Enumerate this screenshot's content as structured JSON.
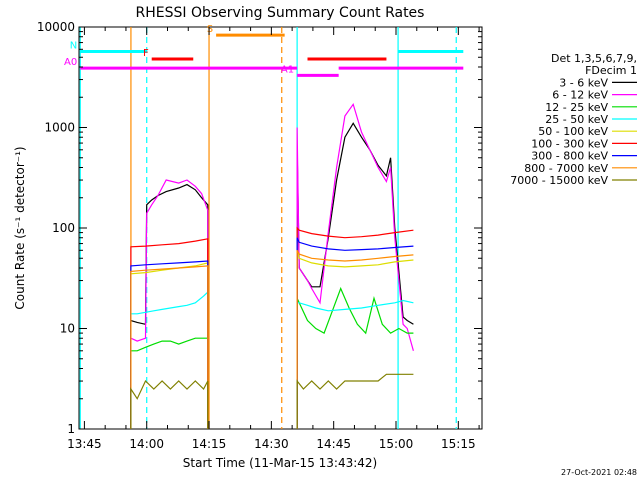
{
  "chart_data": {
    "type": "line",
    "title": "RHESSI Observing Summary Count Rates",
    "xlabel": "Start Time (11-Mar-15 13:43:42)",
    "ylabel": "Count Rate (s⁻¹ detector⁻¹)",
    "x_unit": "minutes after 13:43:42",
    "xlim": [
      0,
      97
    ],
    "ylim": [
      1,
      10000
    ],
    "y_scale": "log",
    "x_ticks": [
      {
        "label": "13:45",
        "value": 1.3
      },
      {
        "label": "14:00",
        "value": 16.3
      },
      {
        "label": "14:15",
        "value": 31.3
      },
      {
        "label": "14:30",
        "value": 46.3
      },
      {
        "label": "14:45",
        "value": 61.3
      },
      {
        "label": "15:00",
        "value": 76.3
      },
      {
        "label": "15:15",
        "value": 91.3
      }
    ],
    "y_ticks": [
      {
        "label": "1",
        "value": 1
      },
      {
        "label": "10",
        "value": 10
      },
      {
        "label": "100",
        "value": 100
      },
      {
        "label": "1000",
        "value": 1000
      },
      {
        "label": "10000",
        "value": 10000
      }
    ],
    "legend_header": [
      "Det 1,3,5,6,7,9,",
      "FDecim 1"
    ],
    "legend_placement": "right",
    "series": [
      {
        "name": "3 - 6 keV",
        "color": "#000000",
        "x": [
          12.5,
          14,
          16,
          16.3,
          17.5,
          19,
          21,
          24,
          26,
          28,
          29.5,
          31,
          52.5,
          53,
          55,
          56,
          58,
          60,
          62,
          64,
          66,
          68,
          70,
          72,
          74,
          75,
          76,
          78,
          79,
          80.5
        ],
        "y": [
          12,
          11.5,
          11,
          170,
          190,
          210,
          230,
          250,
          270,
          240,
          200,
          170,
          650,
          40,
          30,
          26,
          26,
          80,
          300,
          800,
          1100,
          800,
          600,
          420,
          330,
          500,
          100,
          13,
          12,
          11
        ]
      },
      {
        "name": "6 - 12 keV",
        "color": "#ff00ff",
        "x": [
          12.5,
          14,
          16,
          16.3,
          17.5,
          19,
          21,
          24,
          26,
          28,
          29.5,
          31,
          52.5,
          53,
          55,
          56,
          58,
          60,
          62,
          64,
          66,
          68,
          70,
          72,
          74,
          75,
          76,
          78,
          79,
          80.5
        ],
        "y": [
          8,
          7.5,
          8,
          140,
          170,
          210,
          300,
          280,
          300,
          260,
          220,
          150,
          1000,
          40,
          30,
          25,
          18,
          90,
          400,
          1300,
          1700,
          900,
          600,
          400,
          290,
          400,
          80,
          11,
          10,
          6
        ]
      },
      {
        "name": "12 - 25 keV",
        "color": "#00dd00",
        "x": [
          12.5,
          14,
          16,
          18,
          20,
          22,
          24,
          26,
          28,
          30,
          31,
          52.5,
          53,
          55,
          57,
          59,
          61,
          63,
          65,
          67,
          69,
          71,
          73,
          75,
          77,
          79,
          80.5
        ],
        "y": [
          6,
          6,
          6.5,
          7,
          7.5,
          7.5,
          7,
          7.5,
          8,
          8,
          8,
          20,
          18,
          12,
          10,
          9,
          15,
          25,
          16,
          11,
          9,
          20,
          11,
          9,
          10,
          9,
          9
        ]
      },
      {
        "name": "25 - 50 keV",
        "color": "#00ffff",
        "x": [
          12.5,
          14,
          16,
          18,
          20,
          22,
          24,
          26,
          28,
          30,
          31,
          52.5,
          53,
          55,
          57,
          60,
          64,
          68,
          72,
          76,
          78,
          80.5
        ],
        "y": [
          14,
          14,
          14.5,
          15,
          15.5,
          16,
          16.5,
          17,
          18,
          21,
          23,
          18,
          18,
          17,
          16,
          15,
          15.5,
          16,
          17,
          18,
          19,
          18
        ]
      },
      {
        "name": "50 - 100 keV",
        "color": "#dddd00",
        "x": [
          12.5,
          16,
          20,
          24,
          28,
          31,
          52.5,
          53,
          56,
          60,
          64,
          68,
          72,
          76,
          80.5
        ],
        "y": [
          35,
          36,
          38,
          40,
          42,
          45,
          60,
          50,
          45,
          42,
          41,
          42,
          43,
          46,
          48
        ]
      },
      {
        "name": "100 - 300 keV",
        "color": "#ff0000",
        "x": [
          12.5,
          16,
          20,
          24,
          28,
          31,
          52.5,
          53,
          56,
          60,
          64,
          68,
          72,
          76,
          80.5
        ],
        "y": [
          65,
          66,
          68,
          70,
          74,
          78,
          100,
          95,
          88,
          83,
          80,
          82,
          85,
          90,
          95
        ]
      },
      {
        "name": "300 - 800 keV",
        "color": "#0000ff",
        "x": [
          12.5,
          16,
          20,
          24,
          28,
          31,
          52.5,
          53,
          56,
          60,
          64,
          68,
          72,
          76,
          80.5
        ],
        "y": [
          42,
          43,
          44,
          45,
          46,
          47,
          80,
          72,
          66,
          62,
          60,
          61,
          62,
          64,
          66
        ]
      },
      {
        "name": "800 - 7000 keV",
        "color": "#ff8c00",
        "x": [
          12.5,
          16,
          20,
          24,
          28,
          31,
          52.5,
          53,
          56,
          60,
          64,
          68,
          72,
          76,
          80.5
        ],
        "y": [
          37,
          38,
          39,
          40,
          41,
          42,
          60,
          55,
          50,
          48,
          47,
          48,
          50,
          52,
          54
        ]
      },
      {
        "name": "7000 - 15000 keV",
        "color": "#808000",
        "x": [
          12.5,
          14,
          16,
          18,
          20,
          22,
          24,
          26,
          28,
          30,
          31,
          52.5,
          54,
          56,
          58,
          60,
          62,
          64,
          66,
          68,
          70,
          72,
          74,
          76,
          78,
          80.5
        ],
        "y": [
          2.5,
          2,
          3,
          2.5,
          3,
          2.5,
          3,
          2.5,
          3,
          2.5,
          3,
          3,
          2.5,
          3,
          2.5,
          3,
          2.5,
          3,
          3,
          3,
          3,
          3,
          3.5,
          3.5,
          3.5,
          3.5
        ]
      }
    ],
    "vertical_markers": [
      {
        "x": 0.3,
        "color": "#00ffff",
        "style": "solid"
      },
      {
        "x": 12.5,
        "color": "#ff8c00",
        "style": "solid"
      },
      {
        "x": 16.3,
        "color": "#00ffff",
        "style": "dashed"
      },
      {
        "x": 31.3,
        "color": "#ff8c00",
        "style": "solid"
      },
      {
        "x": 48.8,
        "color": "#ff8c00",
        "style": "dashed"
      },
      {
        "x": 52.5,
        "color": "#00ffff",
        "style": "solid"
      },
      {
        "x": 76.8,
        "color": "#00ffff",
        "style": "solid"
      },
      {
        "x": 90.8,
        "color": "#00ffff",
        "style": "dashed"
      }
    ],
    "flags": [
      {
        "label": "N",
        "color": "#00ffff",
        "y": 5700,
        "segments": [
          [
            0.3,
            16.3
          ],
          [
            76.8,
            92.5
          ]
        ]
      },
      {
        "label": "S",
        "color": "#ff8c00",
        "y": 8300,
        "segments": [
          [
            33.0,
            49.5
          ]
        ]
      },
      {
        "label": "F",
        "color": "#ff0000",
        "y": 4800,
        "segments": [
          [
            17.5,
            27.5
          ],
          [
            55.0,
            74.0
          ]
        ]
      },
      {
        "label": "A1",
        "color": "#ff00ff",
        "y": 3300,
        "segments": [
          [
            52.5,
            62.5
          ]
        ]
      },
      {
        "label": "A0",
        "color": "#ff00ff",
        "y": 3900,
        "segments": [
          [
            0.3,
            52.5
          ],
          [
            62.5,
            92.5
          ]
        ]
      }
    ]
  },
  "timestamp": "27-Oct-2021 02:48"
}
